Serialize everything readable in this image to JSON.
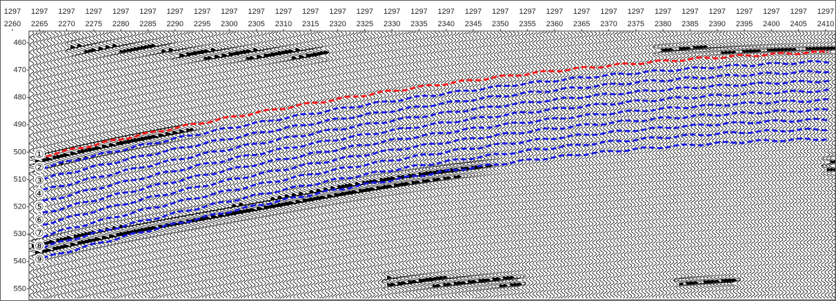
{
  "figure": {
    "inline_row": [
      1297,
      1297,
      1297,
      1297,
      1297,
      1297,
      1297,
      1297,
      1297,
      1297,
      1297,
      1297,
      1297,
      1297,
      1297,
      1297,
      1297,
      1297,
      1297,
      1297,
      1297,
      1297,
      1297,
      1297,
      1297,
      1297,
      1297,
      1297,
      1297,
      1297,
      1297
    ],
    "crossline_row": [
      2260,
      2265,
      2270,
      2275,
      2280,
      2285,
      2290,
      2295,
      2300,
      2305,
      2310,
      2315,
      2320,
      2325,
      2330,
      2335,
      2340,
      2345,
      2350,
      2355,
      2360,
      2365,
      2370,
      2375,
      2380,
      2385,
      2390,
      2395,
      2400,
      2405,
      2410
    ],
    "time_ticks": [
      460,
      470,
      480,
      490,
      500,
      510,
      520,
      530,
      540,
      550
    ],
    "horizon_labels": [
      "①",
      "②",
      "③",
      "④",
      "⑤",
      "⑥",
      "⑦",
      "⑧",
      "⑨"
    ]
  }
}
